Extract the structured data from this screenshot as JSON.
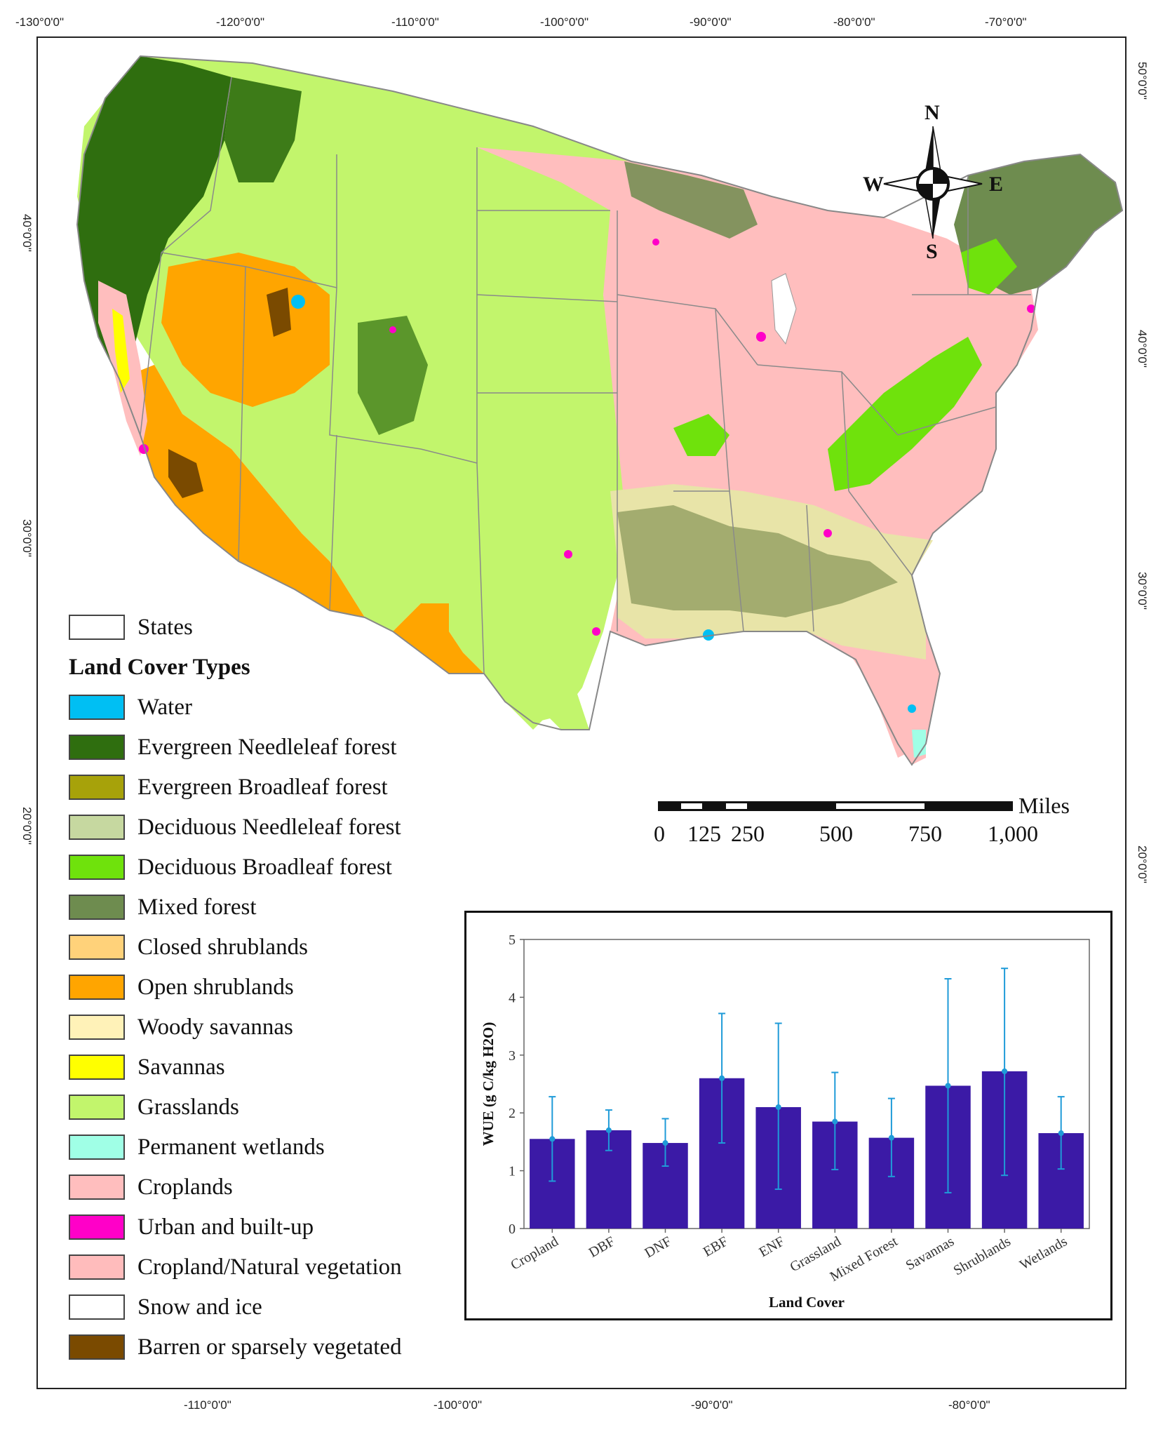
{
  "coords": {
    "top": [
      "-130°0'0\"",
      "-120°0'0\"",
      "-110°0'0\"",
      "-100°0'0\"",
      "-90°0'0\"",
      "-80°0'0\"",
      "-70°0'0\""
    ],
    "bottom": [
      "-110°0'0\"",
      "-100°0'0\"",
      "-90°0'0\"",
      "-80°0'0\""
    ],
    "left": [
      "40°0'0\"",
      "30°0'0\"",
      "20°0'0\""
    ],
    "right": [
      "50°0'0\"",
      "40°0'0\"",
      "30°0'0\"",
      "20°0'0\""
    ]
  },
  "compass": {
    "n": "N",
    "s": "S",
    "e": "E",
    "w": "W"
  },
  "scalebar": {
    "ticks": [
      "0",
      "125",
      "250",
      "500",
      "750",
      "1,000"
    ],
    "unit": "Miles"
  },
  "legend": {
    "states_label": "States",
    "title": "Land Cover Types",
    "items": [
      {
        "label": "Water",
        "color": "#00bff3"
      },
      {
        "label": "Evergreen Needleleaf forest",
        "color": "#2f6e0f"
      },
      {
        "label": "Evergreen Broadleaf forest",
        "color": "#a7a20a"
      },
      {
        "label": "Deciduous Needleleaf forest",
        "color": "#c6d8a0"
      },
      {
        "label": "Deciduous Broadleaf forest",
        "color": "#6fe20c"
      },
      {
        "label": "Mixed forest",
        "color": "#6e8c4f"
      },
      {
        "label": "Closed shrublands",
        "color": "#ffd27a"
      },
      {
        "label": "Open shrublands",
        "color": "#ffa500"
      },
      {
        "label": "Woody savannas",
        "color": "#fff2b8"
      },
      {
        "label": "Savannas",
        "color": "#ffff00"
      },
      {
        "label": "Grasslands",
        "color": "#c2f56c"
      },
      {
        "label": "Permanent wetlands",
        "color": "#a0ffe6"
      },
      {
        "label": "Croplands",
        "color": "#ffbebe"
      },
      {
        "label": "Urban and built-up",
        "color": "#ff00c8"
      },
      {
        "label": "Cropland/Natural vegetation",
        "color": "#ffbcbc"
      },
      {
        "label": "Snow and ice",
        "color": "#ffffff"
      },
      {
        "label": "Barren or sparsely vegetated",
        "color": "#7a4a00"
      }
    ]
  },
  "chart_data": {
    "type": "bar",
    "categories": [
      "Cropland",
      "DBF",
      "DNF",
      "EBF",
      "ENF",
      "Grassland",
      "Mixed Forest",
      "Savannas",
      "Shrublands",
      "Wetlands"
    ],
    "values": [
      1.55,
      1.7,
      1.48,
      2.6,
      2.1,
      1.85,
      1.57,
      2.47,
      2.72,
      1.65
    ],
    "error_low": [
      0.82,
      1.35,
      1.08,
      1.48,
      0.68,
      1.02,
      0.9,
      0.62,
      0.92,
      1.03
    ],
    "error_high": [
      2.28,
      2.05,
      1.9,
      3.72,
      3.55,
      2.7,
      2.25,
      4.32,
      4.5,
      2.28
    ],
    "bar_color": "#3b1aa6",
    "error_color": "#1f9bd8",
    "xlabel": "Land Cover",
    "ylabel": "WUE (g C/kg H2O)",
    "ylim": [
      0,
      5
    ],
    "yticks": [
      "0",
      "1",
      "2",
      "3",
      "4",
      "5"
    ]
  }
}
